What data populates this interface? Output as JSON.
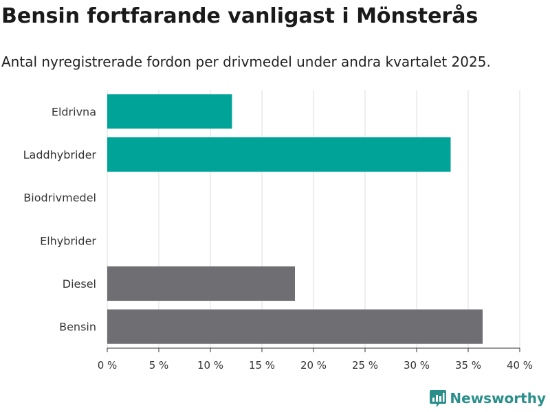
{
  "header": {
    "title": "Bensin fortfarande vanligast i Mönsterås",
    "subtitle": "Antal nyregistrerade fordon per drivmedel under andra kvartalet 2025."
  },
  "brand": {
    "name": "Newsworthy",
    "icon": "newsworthy-logo-icon",
    "color": "#2a8f8a"
  },
  "chart_data": {
    "type": "bar",
    "orientation": "horizontal",
    "categories": [
      "Eldrivna",
      "Laddhybrider",
      "Biodrivmedel",
      "Elhybrider",
      "Diesel",
      "Bensin"
    ],
    "values": [
      12.1,
      33.3,
      0,
      0,
      18.2,
      36.4
    ],
    "colors": [
      "#00a398",
      "#00a398",
      "#00a398",
      "#00a398",
      "#6e6e73",
      "#6e6e73"
    ],
    "xlim": [
      0,
      40
    ],
    "xticks": [
      0,
      5,
      10,
      15,
      20,
      25,
      30,
      35,
      40
    ],
    "xtick_labels": [
      "0 %",
      "5 %",
      "10 %",
      "15 %",
      "20 %",
      "25 %",
      "30 %",
      "35 %",
      "40 %"
    ],
    "grid": true,
    "legend": "none"
  }
}
